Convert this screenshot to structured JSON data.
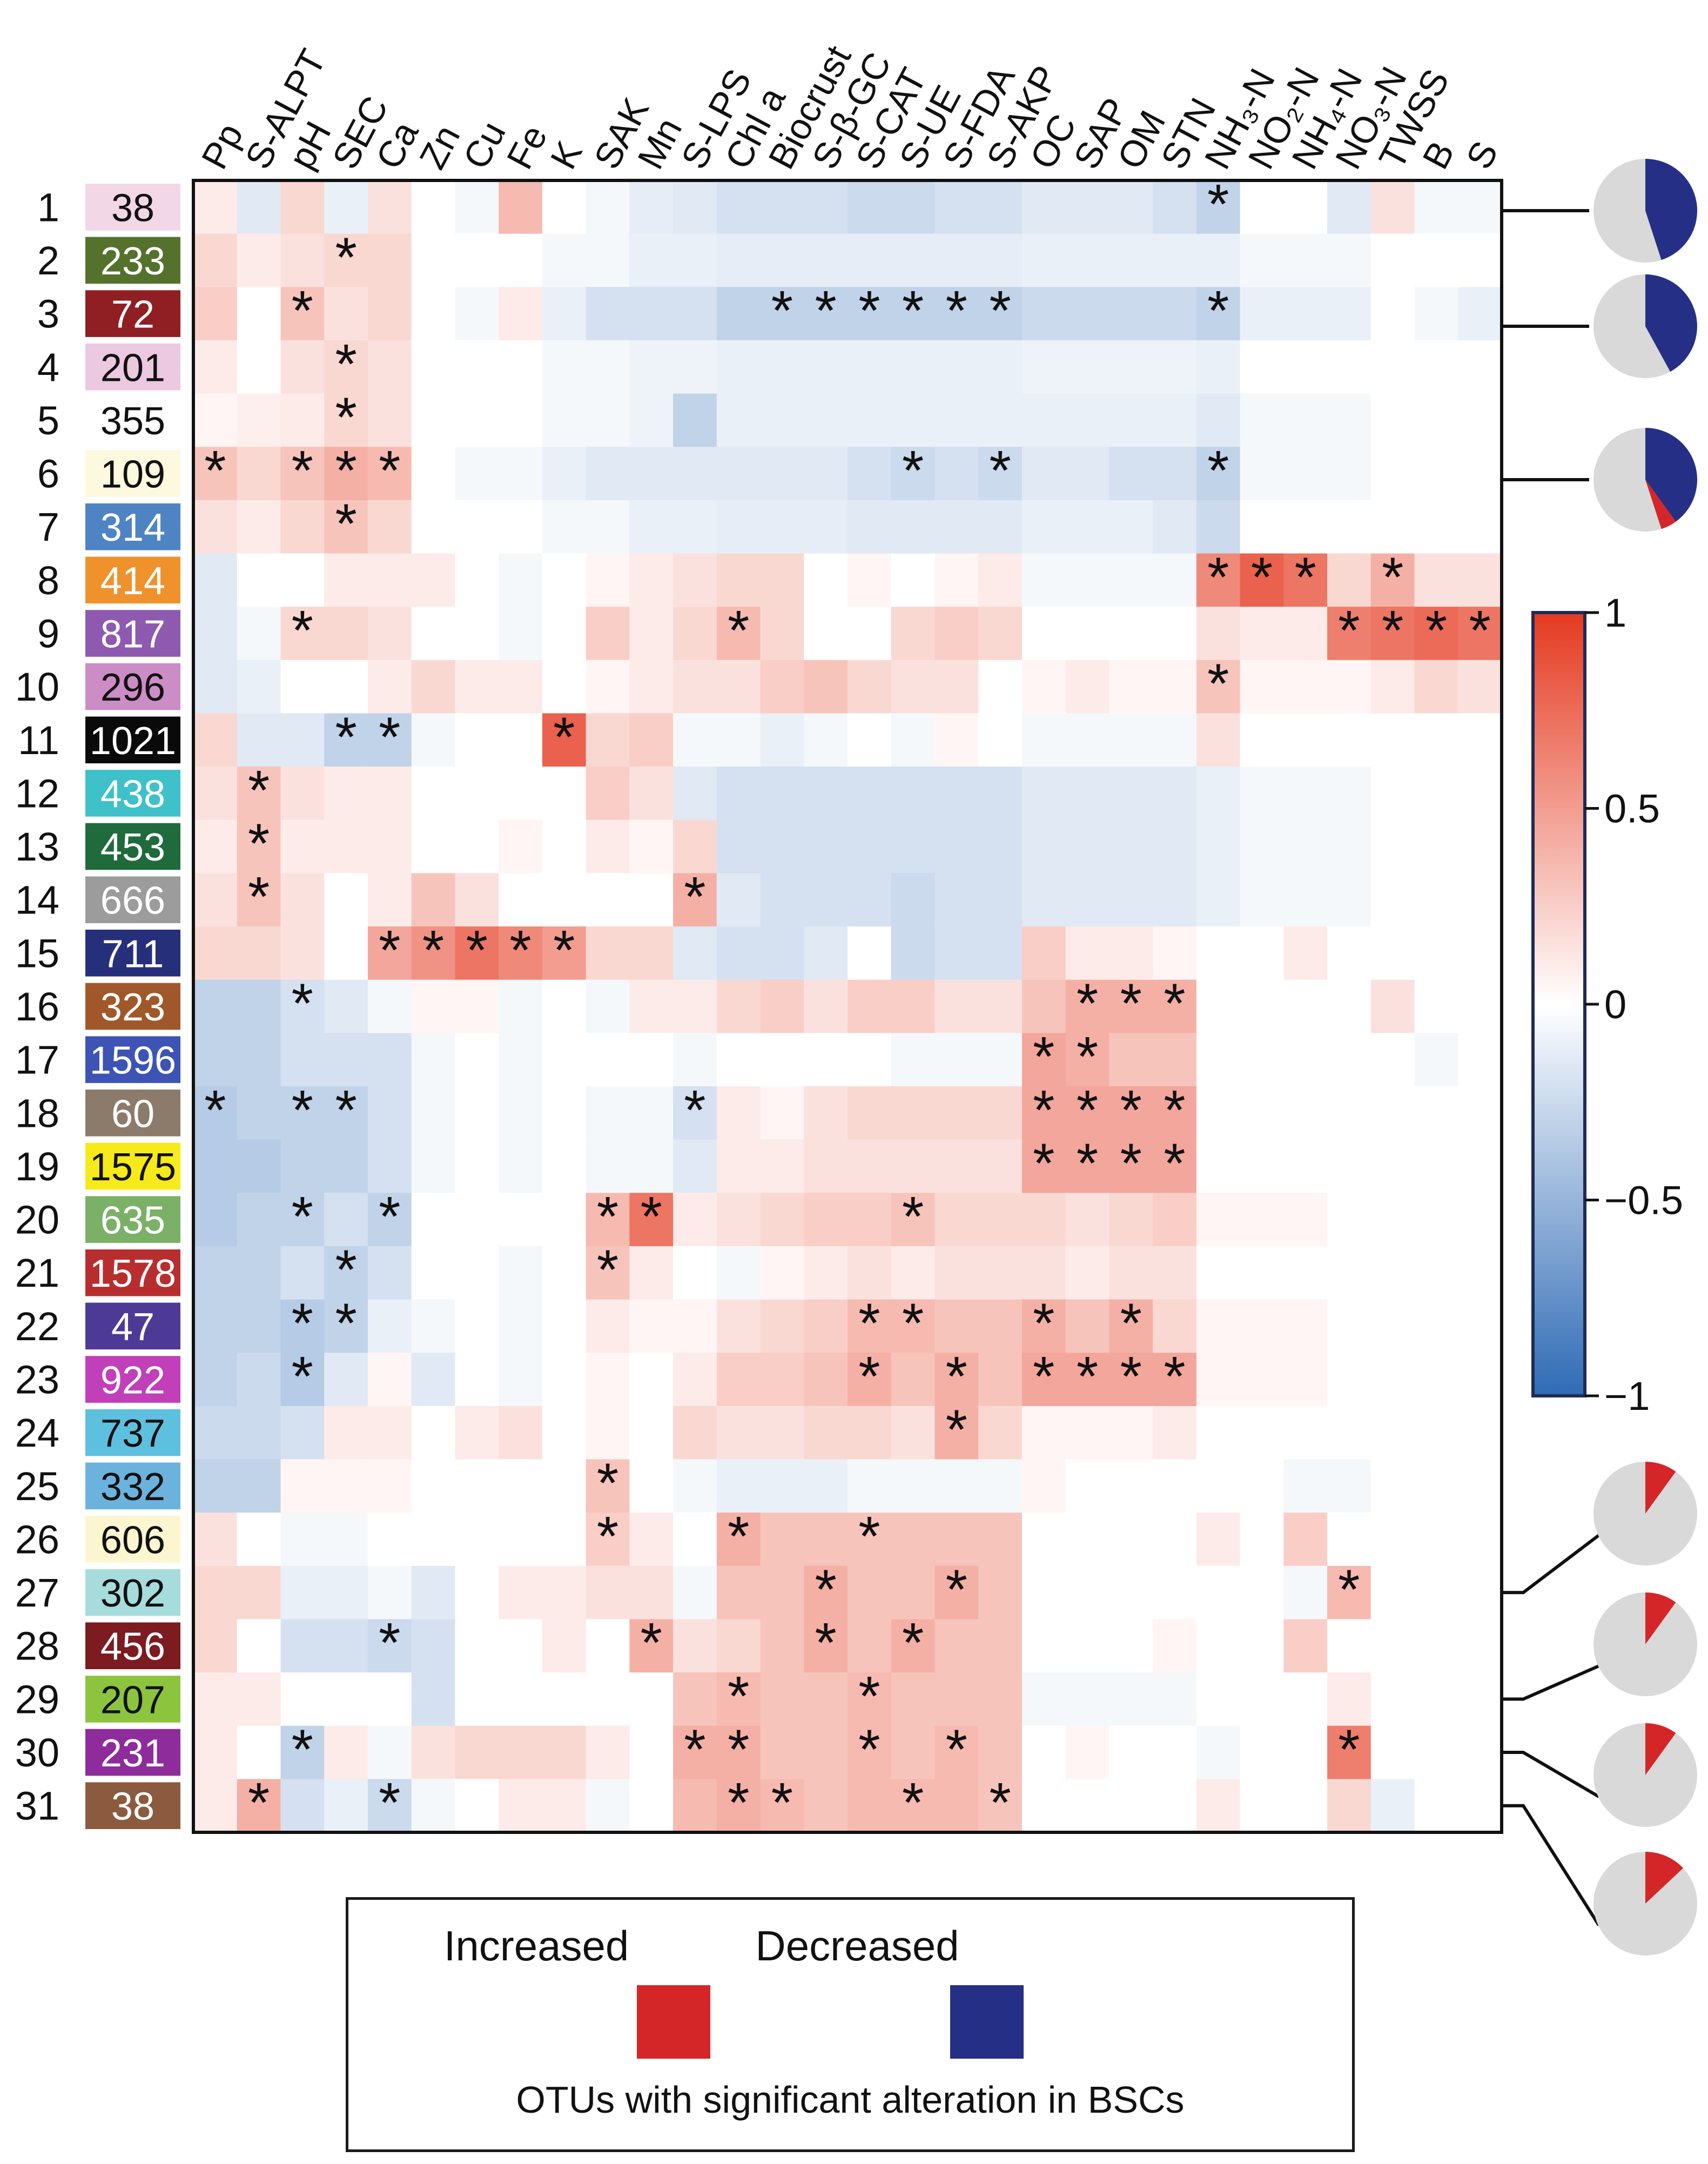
{
  "chart_data": {
    "type": "heatmap",
    "title": "",
    "columns": [
      "Pp",
      "S-ALPT",
      "pH",
      "SEC",
      "Ca",
      "Zn",
      "Cu",
      "Fe",
      "K",
      "SAK",
      "Mn",
      "S-LPS",
      "Chl a",
      "Biocrust",
      "S-β-GC",
      "S-CAT",
      "S-UE",
      "S-FDA",
      "S-AKP",
      "OC",
      "SAP",
      "OM",
      "STN",
      "NH₃-N",
      "NO₂-N",
      "NH₄-N",
      "NO₃-N",
      "TWSS",
      "B",
      "S"
    ],
    "rows": [
      {
        "index": "1",
        "otu": "38",
        "color": "#f2d7e6",
        "text_color": "#111111"
      },
      {
        "index": "2",
        "otu": "233",
        "color": "#55722c",
        "text_color": "#ffffff"
      },
      {
        "index": "3",
        "otu": "72",
        "color": "#8f1f22",
        "text_color": "#ffffff"
      },
      {
        "index": "4",
        "otu": "201",
        "color": "#ecc8e1",
        "text_color": "#111111"
      },
      {
        "index": "5",
        "otu": "355",
        "color": "#ffffff",
        "text_color": "#111111"
      },
      {
        "index": "6",
        "otu": "109",
        "color": "#fcf9de",
        "text_color": "#111111"
      },
      {
        "index": "7",
        "otu": "314",
        "color": "#4f84c4",
        "text_color": "#ffffff"
      },
      {
        "index": "8",
        "otu": "414",
        "color": "#f0922c",
        "text_color": "#ffffff"
      },
      {
        "index": "9",
        "otu": "817",
        "color": "#8e5ab0",
        "text_color": "#ffffff"
      },
      {
        "index": "10",
        "otu": "296",
        "color": "#cc8cc6",
        "text_color": "#111111"
      },
      {
        "index": "11",
        "otu": "1021",
        "color": "#0a0a0a",
        "text_color": "#ffffff"
      },
      {
        "index": "12",
        "otu": "438",
        "color": "#3ec1c9",
        "text_color": "#ffffff"
      },
      {
        "index": "13",
        "otu": "453",
        "color": "#1f6b3c",
        "text_color": "#ffffff"
      },
      {
        "index": "14",
        "otu": "666",
        "color": "#9c9c9c",
        "text_color": "#ffffff"
      },
      {
        "index": "15",
        "otu": "711",
        "color": "#262f7a",
        "text_color": "#ffffff"
      },
      {
        "index": "16",
        "otu": "323",
        "color": "#a0582a",
        "text_color": "#ffffff"
      },
      {
        "index": "17",
        "otu": "1596",
        "color": "#3d54b5",
        "text_color": "#ffffff"
      },
      {
        "index": "18",
        "otu": "60",
        "color": "#8c7b6b",
        "text_color": "#ffffff"
      },
      {
        "index": "19",
        "otu": "1575",
        "color": "#f6ea1a",
        "text_color": "#111111"
      },
      {
        "index": "20",
        "otu": "635",
        "color": "#7ab166",
        "text_color": "#ffffff"
      },
      {
        "index": "21",
        "otu": "1578",
        "color": "#b82e2e",
        "text_color": "#ffffff"
      },
      {
        "index": "22",
        "otu": "47",
        "color": "#4d3a96",
        "text_color": "#ffffff"
      },
      {
        "index": "23",
        "otu": "922",
        "color": "#c13fb8",
        "text_color": "#ffffff"
      },
      {
        "index": "24",
        "otu": "737",
        "color": "#5ec0df",
        "text_color": "#111111"
      },
      {
        "index": "25",
        "otu": "332",
        "color": "#6bb2dc",
        "text_color": "#111111"
      },
      {
        "index": "26",
        "otu": "606",
        "color": "#fbf6cf",
        "text_color": "#111111"
      },
      {
        "index": "27",
        "otu": "302",
        "color": "#a7dcdc",
        "text_color": "#111111"
      },
      {
        "index": "28",
        "otu": "456",
        "color": "#7c1b20",
        "text_color": "#ffffff"
      },
      {
        "index": "29",
        "otu": "207",
        "color": "#8cc43e",
        "text_color": "#111111"
      },
      {
        "index": "30",
        "otu": "231",
        "color": "#8e2c9c",
        "text_color": "#ffffff"
      },
      {
        "index": "31",
        "otu": "38",
        "color": "#8c5a3e",
        "text_color": "#ffffff"
      }
    ],
    "values": [
      [
        0.1,
        -0.15,
        0.2,
        -0.1,
        0.15,
        0,
        -0.05,
        0.35,
        0,
        -0.05,
        -0.12,
        -0.15,
        -0.2,
        -0.2,
        -0.2,
        -0.25,
        -0.25,
        -0.2,
        -0.2,
        -0.15,
        -0.15,
        -0.15,
        -0.2,
        -0.3,
        0,
        0,
        -0.15,
        0.15,
        -0.05,
        -0.05
      ],
      [
        0.2,
        0.1,
        0.15,
        0.2,
        0.2,
        0,
        0,
        0,
        -0.05,
        -0.05,
        -0.1,
        -0.1,
        -0.12,
        -0.12,
        -0.12,
        -0.12,
        -0.12,
        -0.12,
        -0.12,
        -0.1,
        -0.1,
        -0.1,
        -0.1,
        -0.1,
        -0.05,
        -0.05,
        -0.05,
        0,
        0,
        0
      ],
      [
        0.25,
        0,
        0.3,
        0.15,
        0.2,
        0,
        -0.05,
        0.1,
        -0.1,
        -0.2,
        -0.2,
        -0.2,
        -0.3,
        -0.3,
        -0.3,
        -0.3,
        -0.3,
        -0.3,
        -0.3,
        -0.25,
        -0.25,
        -0.25,
        -0.25,
        -0.3,
        -0.1,
        -0.1,
        -0.1,
        0,
        -0.05,
        -0.1
      ],
      [
        0.1,
        0,
        0.15,
        0.2,
        0.15,
        0,
        0,
        0,
        -0.05,
        -0.05,
        -0.08,
        -0.08,
        -0.1,
        -0.1,
        -0.1,
        -0.1,
        -0.1,
        -0.1,
        -0.1,
        -0.08,
        -0.08,
        -0.08,
        -0.08,
        -0.1,
        0,
        0,
        0,
        0,
        0,
        0
      ],
      [
        0.05,
        0.08,
        0.1,
        0.2,
        0.15,
        0,
        0,
        0,
        -0.05,
        -0.05,
        -0.08,
        -0.3,
        -0.1,
        -0.1,
        -0.1,
        -0.1,
        -0.1,
        -0.1,
        -0.1,
        -0.1,
        -0.1,
        -0.1,
        -0.1,
        -0.15,
        -0.05,
        -0.05,
        -0.05,
        0,
        0,
        0
      ],
      [
        0.3,
        0.2,
        0.3,
        0.4,
        0.35,
        0,
        -0.05,
        -0.05,
        -0.1,
        -0.15,
        -0.15,
        -0.15,
        -0.15,
        -0.15,
        -0.15,
        -0.2,
        -0.25,
        -0.2,
        -0.25,
        -0.15,
        -0.15,
        -0.2,
        -0.2,
        -0.3,
        -0.05,
        -0.05,
        -0.05,
        0,
        0,
        0
      ],
      [
        0.15,
        0.1,
        0.2,
        0.3,
        0.2,
        0,
        0,
        0,
        -0.05,
        -0.05,
        -0.1,
        -0.1,
        -0.12,
        -0.12,
        -0.12,
        -0.15,
        -0.15,
        -0.15,
        -0.15,
        -0.1,
        -0.1,
        -0.1,
        -0.15,
        -0.25,
        0,
        0,
        0,
        0,
        0,
        0
      ],
      [
        -0.15,
        0,
        0,
        0.1,
        0.1,
        0.1,
        0,
        -0.05,
        0,
        0.05,
        0.1,
        0.15,
        0.2,
        0.2,
        0,
        0.05,
        0,
        0.05,
        0.1,
        -0.05,
        -0.05,
        -0.05,
        -0.05,
        0.6,
        0.8,
        0.7,
        0.2,
        0.4,
        0.15,
        0.15
      ],
      [
        -0.15,
        -0.05,
        0.2,
        0.2,
        0.15,
        0,
        0,
        -0.05,
        0,
        0.25,
        0.1,
        0.2,
        0.35,
        0.2,
        0,
        0,
        0.2,
        0.25,
        0.2,
        0,
        0,
        0,
        0,
        0.15,
        0.1,
        0.1,
        0.65,
        0.7,
        0.75,
        0.7
      ],
      [
        -0.15,
        -0.1,
        0,
        0,
        0.1,
        0.2,
        0.1,
        0.1,
        0,
        0.05,
        0.1,
        0.15,
        0.15,
        0.25,
        0.3,
        0.2,
        0.15,
        0.15,
        0,
        0.05,
        0.1,
        0.05,
        0.05,
        0.3,
        0.05,
        0.05,
        0.05,
        0.1,
        0.2,
        0.15
      ],
      [
        0.2,
        -0.15,
        -0.15,
        -0.3,
        -0.3,
        -0.05,
        0,
        0,
        0.8,
        0.2,
        0.25,
        -0.05,
        -0.05,
        -0.1,
        -0.05,
        0,
        -0.05,
        0.05,
        0,
        -0.05,
        -0.05,
        -0.05,
        -0.05,
        0.15,
        0,
        0,
        0,
        0,
        0,
        0
      ],
      [
        0.15,
        0.3,
        0.15,
        0.1,
        0.1,
        0,
        0,
        0,
        0,
        0.25,
        0.15,
        -0.15,
        -0.2,
        -0.2,
        -0.2,
        -0.2,
        -0.2,
        -0.2,
        -0.2,
        -0.15,
        -0.15,
        -0.15,
        -0.15,
        -0.1,
        -0.05,
        -0.05,
        -0.05,
        0,
        0,
        0
      ],
      [
        0.1,
        0.3,
        0.1,
        0.1,
        0.1,
        0,
        0,
        0.05,
        0,
        0.1,
        0.05,
        0.2,
        -0.2,
        -0.2,
        -0.2,
        -0.2,
        -0.2,
        -0.2,
        -0.2,
        -0.15,
        -0.15,
        -0.15,
        -0.15,
        -0.1,
        -0.05,
        -0.05,
        -0.05,
        0,
        0,
        0
      ],
      [
        0.15,
        0.3,
        0.15,
        0,
        0.1,
        0.3,
        0.15,
        0,
        0,
        0,
        0,
        0.4,
        -0.15,
        -0.2,
        -0.2,
        -0.2,
        -0.25,
        -0.2,
        -0.2,
        -0.15,
        -0.15,
        -0.15,
        -0.15,
        -0.1,
        -0.05,
        -0.05,
        -0.05,
        0,
        0,
        0
      ],
      [
        0.2,
        0.2,
        0.15,
        0,
        0.45,
        0.55,
        0.7,
        0.6,
        0.5,
        0.2,
        0.2,
        -0.15,
        -0.2,
        -0.2,
        -0.15,
        0,
        -0.25,
        -0.2,
        -0.2,
        0.25,
        0.1,
        0.1,
        0.05,
        0,
        0,
        0.1,
        0,
        0,
        0,
        0
      ],
      [
        -0.3,
        -0.3,
        -0.2,
        -0.15,
        -0.05,
        0.05,
        0.05,
        -0.05,
        0,
        -0.05,
        0.1,
        0.1,
        0.2,
        0.25,
        0.15,
        0.25,
        0.25,
        0.15,
        0.15,
        0.3,
        0.4,
        0.4,
        0.4,
        0,
        0,
        0,
        0,
        0.15,
        0,
        0
      ],
      [
        -0.3,
        -0.3,
        -0.2,
        -0.2,
        -0.2,
        -0.05,
        0,
        -0.05,
        0,
        0,
        0,
        -0.05,
        0,
        0,
        0,
        0,
        -0.05,
        -0.05,
        -0.05,
        0.45,
        0.4,
        0.3,
        0.3,
        0,
        0,
        0,
        0,
        0,
        -0.05,
        0
      ],
      [
        -0.35,
        -0.3,
        -0.3,
        -0.3,
        -0.2,
        -0.05,
        0,
        -0.05,
        0,
        -0.05,
        -0.05,
        -0.2,
        0.1,
        0.05,
        0.15,
        0.2,
        0.2,
        0.2,
        0.2,
        0.45,
        0.45,
        0.45,
        0.45,
        0,
        0,
        0,
        0,
        0,
        0,
        0
      ],
      [
        -0.35,
        -0.35,
        -0.3,
        -0.3,
        -0.2,
        -0.05,
        0,
        -0.05,
        0,
        -0.05,
        -0.05,
        -0.15,
        0.1,
        0.1,
        0.15,
        0.15,
        0.15,
        0.15,
        0.15,
        0.45,
        0.45,
        0.45,
        0.45,
        0,
        0,
        0,
        0,
        0,
        0,
        0
      ],
      [
        -0.35,
        -0.3,
        -0.3,
        -0.2,
        -0.3,
        0,
        0,
        0,
        0,
        0.35,
        0.7,
        0.1,
        0.15,
        0.2,
        0.25,
        0.25,
        0.3,
        0.2,
        0.2,
        0.2,
        0.15,
        0.2,
        0.25,
        0.05,
        0.05,
        0.05,
        0,
        0,
        0,
        0
      ],
      [
        -0.3,
        -0.3,
        -0.2,
        -0.3,
        -0.2,
        0,
        0,
        -0.05,
        0,
        0.3,
        0.1,
        0,
        -0.05,
        0.05,
        0.1,
        0.15,
        0.1,
        0.15,
        0.15,
        0.15,
        0.1,
        0.15,
        0.15,
        0,
        0,
        0,
        0,
        0,
        0,
        0
      ],
      [
        -0.3,
        -0.3,
        -0.35,
        -0.3,
        -0.1,
        -0.05,
        0,
        -0.05,
        0,
        0.1,
        0.05,
        0.05,
        0.15,
        0.2,
        0.25,
        0.35,
        0.35,
        0.3,
        0.3,
        0.4,
        0.3,
        0.4,
        0.2,
        0.05,
        0.05,
        0.05,
        0,
        0,
        0,
        0
      ],
      [
        -0.3,
        -0.25,
        -0.35,
        -0.15,
        0.05,
        -0.15,
        0,
        -0.05,
        0,
        0.05,
        0,
        0.1,
        0.25,
        0.25,
        0.3,
        0.4,
        0.3,
        0.4,
        0.3,
        0.45,
        0.45,
        0.45,
        0.45,
        0.05,
        0.05,
        0.05,
        0,
        0,
        0,
        0
      ],
      [
        -0.25,
        -0.25,
        -0.2,
        0.1,
        0.1,
        0,
        0.1,
        0.15,
        0,
        0.05,
        0,
        0.2,
        0.15,
        0.15,
        0.2,
        0.2,
        0.15,
        0.4,
        0.2,
        0.05,
        0.05,
        0.05,
        0.1,
        0,
        0,
        0,
        0,
        0,
        0,
        0
      ],
      [
        -0.3,
        -0.3,
        0.05,
        0.05,
        0.05,
        0,
        0,
        0,
        0,
        0.3,
        0,
        -0.05,
        -0.1,
        -0.1,
        -0.1,
        -0.05,
        -0.05,
        -0.05,
        -0.05,
        0.05,
        0,
        0,
        0,
        0,
        0,
        -0.05,
        -0.05,
        0,
        0,
        0
      ],
      [
        0.15,
        0,
        -0.05,
        -0.05,
        0,
        0,
        0,
        0,
        0,
        0.25,
        0.1,
        0,
        0.4,
        0.3,
        0.3,
        0.3,
        0.3,
        0.3,
        0.3,
        0,
        0,
        0,
        0,
        0.1,
        0,
        0.25,
        0,
        0,
        0,
        0
      ],
      [
        0.2,
        0.2,
        -0.1,
        -0.1,
        -0.05,
        -0.15,
        0,
        0.1,
        0.1,
        0.15,
        0.15,
        -0.05,
        0.3,
        0.3,
        0.4,
        0.3,
        0.3,
        0.4,
        0.3,
        0,
        0,
        0,
        0,
        0,
        0,
        -0.05,
        0.35,
        0,
        0,
        0
      ],
      [
        0.2,
        0,
        -0.2,
        -0.2,
        -0.25,
        -0.2,
        0,
        0,
        0.1,
        0,
        0.4,
        0.15,
        0.2,
        0.3,
        0.4,
        0.3,
        0.4,
        0.3,
        0.3,
        0,
        0,
        0,
        0.05,
        0,
        0,
        0.25,
        0,
        0,
        0,
        0
      ],
      [
        0.1,
        0.1,
        0,
        0,
        0,
        -0.2,
        0,
        0,
        0,
        0,
        0,
        0.3,
        0.35,
        0.3,
        0.3,
        0.35,
        0.3,
        0.3,
        0.3,
        -0.05,
        -0.05,
        -0.05,
        -0.05,
        0,
        0,
        0,
        0.1,
        0,
        0,
        0
      ],
      [
        0.1,
        0,
        -0.3,
        0.1,
        -0.05,
        0.15,
        0.2,
        0.2,
        0.2,
        0.1,
        0,
        0.4,
        0.4,
        0.3,
        0.3,
        0.35,
        0.3,
        0.35,
        0.3,
        0,
        0.05,
        0,
        0,
        -0.05,
        0,
        0,
        0.65,
        0,
        0,
        0
      ],
      [
        0.1,
        0.4,
        -0.2,
        -0.1,
        -0.25,
        -0.05,
        0,
        0.1,
        0.1,
        -0.05,
        0,
        0.35,
        0.4,
        0.35,
        0.3,
        0.35,
        0.35,
        0.35,
        0.3,
        0,
        0,
        0,
        0,
        0.1,
        0,
        0,
        0.2,
        -0.1,
        0,
        0
      ]
    ],
    "significance": [
      [
        23
      ],
      [
        3
      ],
      [
        2,
        13,
        14,
        15,
        16,
        17,
        18,
        23
      ],
      [
        3
      ],
      [
        3
      ],
      [
        0,
        2,
        3,
        4,
        16,
        18,
        23
      ],
      [
        3
      ],
      [
        23,
        24,
        25,
        27
      ],
      [
        2,
        12,
        26,
        27,
        28,
        29
      ],
      [
        23
      ],
      [
        3,
        4,
        8
      ],
      [
        1
      ],
      [
        1
      ],
      [
        1,
        11
      ],
      [
        4,
        5,
        6,
        7,
        8
      ],
      [
        2,
        20,
        21,
        22
      ],
      [
        19,
        20
      ],
      [
        0,
        2,
        3,
        11,
        19,
        20,
        21,
        22
      ],
      [
        19,
        20,
        21,
        22
      ],
      [
        2,
        4,
        9,
        10,
        16
      ],
      [
        3,
        9
      ],
      [
        2,
        3,
        15,
        16,
        19,
        21
      ],
      [
        2,
        15,
        17,
        19,
        20,
        21,
        22
      ],
      [
        17
      ],
      [
        9
      ],
      [
        9,
        12,
        15
      ],
      [
        14,
        17,
        26
      ],
      [
        4,
        10,
        14,
        16
      ],
      [
        12,
        15
      ],
      [
        2,
        11,
        12,
        15,
        17,
        26
      ],
      [
        1,
        4,
        12,
        13,
        16,
        18
      ]
    ],
    "colorbar": {
      "min": -1,
      "max": 1,
      "ticks": [
        "1",
        "0.5",
        "0",
        "−0.5",
        "−1"
      ]
    },
    "pies": [
      {
        "row": "1",
        "increased": 0,
        "decreased": 0.45
      },
      {
        "row": "3",
        "increased": 0,
        "decreased": 0.42
      },
      {
        "row": "6",
        "increased": 0.05,
        "decreased": 0.4
      },
      {
        "row": "27",
        "increased": 0.1,
        "decreased": 0
      },
      {
        "row": "29",
        "increased": 0.1,
        "decreased": 0
      },
      {
        "row": "30",
        "increased": 0.1,
        "decreased": 0
      },
      {
        "row": "31",
        "increased": 0.13,
        "decreased": 0
      }
    ],
    "colors": {
      "increased": "#d42628",
      "decreased": "#262f86",
      "pie_bg": "#d9d9d9",
      "pos": "#e53a20",
      "neg": "#2f6bb5"
    }
  },
  "legend": {
    "increased_label": "Increased",
    "decreased_label": "Decreased",
    "caption": "OTUs with significant alteration in BSCs"
  }
}
